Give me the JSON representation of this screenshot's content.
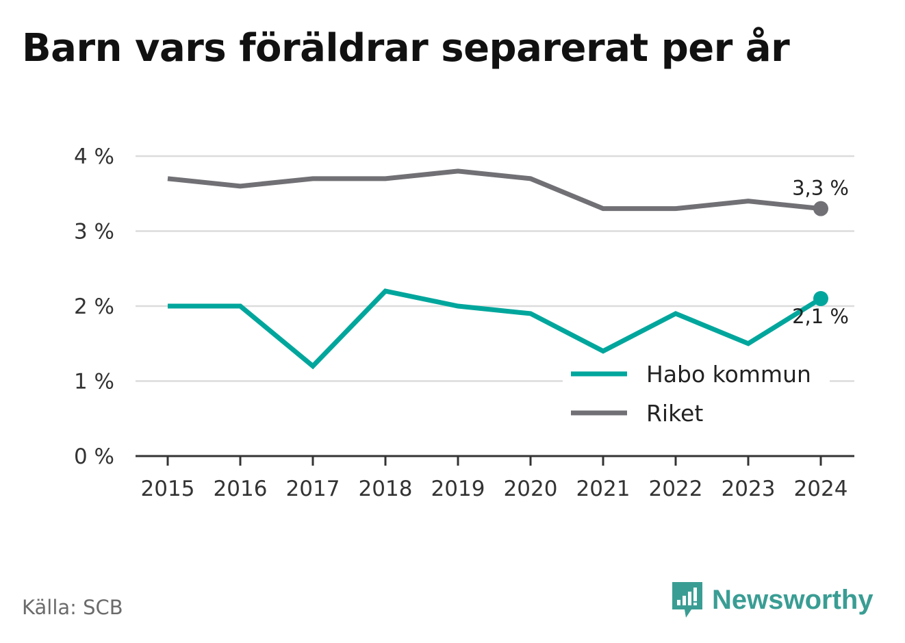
{
  "title": "Barn vars föräldrar separerat per år",
  "source": "Källa: SCB",
  "brand": "Newsworthy",
  "chart_data": {
    "type": "line",
    "x": [
      "2015",
      "2016",
      "2017",
      "2018",
      "2019",
      "2020",
      "2021",
      "2022",
      "2023",
      "2024"
    ],
    "ylim": [
      0,
      4
    ],
    "yticks": [
      0,
      1,
      2,
      3,
      4
    ],
    "ytick_labels": [
      "0 %",
      "1 %",
      "2 %",
      "3 %",
      "4 %"
    ],
    "grid": true,
    "legend_position": "right",
    "series": [
      {
        "name": "Habo kommun",
        "color": "#00a69c",
        "values": [
          2.0,
          2.0,
          1.2,
          2.2,
          2.0,
          1.9,
          1.4,
          1.9,
          1.5,
          2.1
        ],
        "end_label": "2,1 %"
      },
      {
        "name": "Riket",
        "color": "#707075",
        "values": [
          3.7,
          3.6,
          3.7,
          3.7,
          3.8,
          3.7,
          3.3,
          3.3,
          3.4,
          3.3
        ],
        "end_label": "3,3 %"
      }
    ]
  }
}
